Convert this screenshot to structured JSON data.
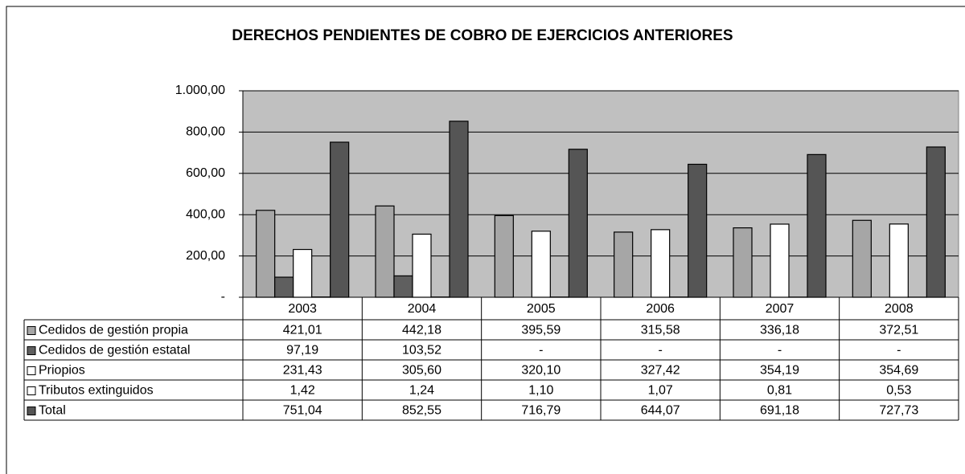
{
  "chart_data": {
    "type": "bar",
    "title": "DERECHOS PENDIENTES DE COBRO DE EJERCICIOS ANTERIORES",
    "categories": [
      "2003",
      "2004",
      "2005",
      "2006",
      "2007",
      "2008"
    ],
    "series": [
      {
        "name": "Cedidos de gestión propia",
        "color": "#a6a6a6",
        "values": [
          421.01,
          442.18,
          395.59,
          315.58,
          336.18,
          372.51
        ],
        "value_labels": [
          "421,01",
          "442,18",
          "395,59",
          "315,58",
          "336,18",
          "372,51"
        ]
      },
      {
        "name": "Cedidos de gestión estatal",
        "color": "#5f5f5f",
        "values": [
          97.19,
          103.52,
          null,
          null,
          null,
          null
        ],
        "value_labels": [
          "97,19",
          "103,52",
          "-",
          "-",
          "-",
          "-"
        ]
      },
      {
        "name": "Priopios",
        "color": "#ffffff",
        "values": [
          231.43,
          305.6,
          320.1,
          327.42,
          354.19,
          354.69
        ],
        "value_labels": [
          "231,43",
          "305,60",
          "320,10",
          "327,42",
          "354,19",
          "354,69"
        ]
      },
      {
        "name": "Tributos extinguidos",
        "color": "#ffffff",
        "values": [
          1.42,
          1.24,
          1.1,
          1.07,
          0.81,
          0.53
        ],
        "value_labels": [
          "1,42",
          "1,24",
          "1,10",
          "1,07",
          "0,81",
          "0,53"
        ]
      },
      {
        "name": "Total",
        "color": "#555555",
        "values": [
          751.04,
          852.55,
          716.79,
          644.07,
          691.18,
          727.73
        ],
        "value_labels": [
          "751,04",
          "852,55",
          "716,79",
          "644,07",
          "691,18",
          "727,73"
        ]
      }
    ],
    "ylim": [
      0,
      1000
    ],
    "yticks": [
      {
        "value": 0,
        "label": "-"
      },
      {
        "value": 200,
        "label": "200,00"
      },
      {
        "value": 400,
        "label": "400,00"
      },
      {
        "value": 600,
        "label": "600,00"
      },
      {
        "value": 800,
        "label": "800,00"
      },
      {
        "value": 1000,
        "label": "1.000,00"
      }
    ],
    "grid": true,
    "plot_background": "#c0c0c0"
  }
}
